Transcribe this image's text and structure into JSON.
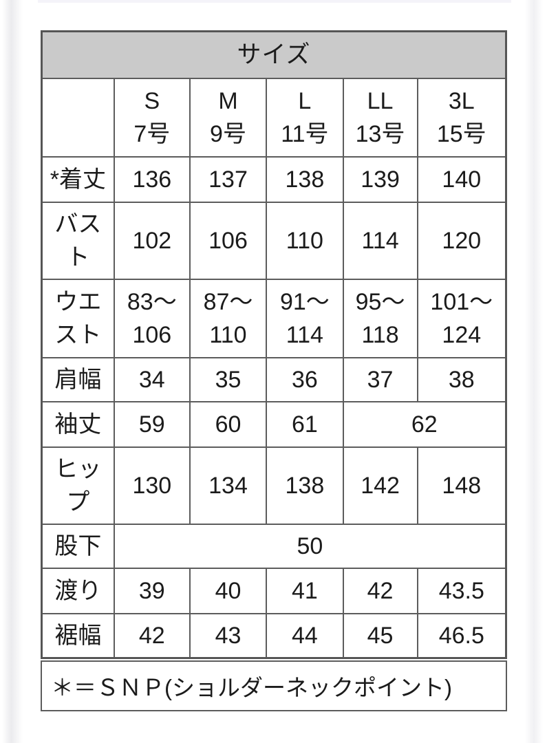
{
  "size_chart": {
    "title": "サイズ",
    "columns": [
      "S\n7号",
      "M\n9号",
      "L\n11号",
      "LL\n13号",
      "3L\n15号"
    ],
    "rows": [
      {
        "label": "*着丈",
        "values": [
          "136",
          "137",
          "138",
          "139",
          "140"
        ]
      },
      {
        "label": "バス\nト",
        "values": [
          "102",
          "106",
          "110",
          "114",
          "120"
        ]
      },
      {
        "label": "ウエ\nスト",
        "values": [
          "83〜\n106",
          "87〜\n110",
          "91〜\n114",
          "95〜\n118",
          "101〜\n124"
        ]
      },
      {
        "label": "肩幅",
        "values": [
          "34",
          "35",
          "36",
          "37",
          "38"
        ]
      },
      {
        "label": "袖丈",
        "values": [
          "59",
          "60",
          "61",
          "62"
        ],
        "spans": [
          1,
          1,
          1,
          2
        ]
      },
      {
        "label": "ヒッ\nプ",
        "values": [
          "130",
          "134",
          "138",
          "142",
          "148"
        ]
      },
      {
        "label": "股下",
        "values": [
          "50"
        ],
        "spans": [
          5
        ]
      },
      {
        "label": "渡り",
        "values": [
          "39",
          "40",
          "41",
          "42",
          "43.5"
        ]
      },
      {
        "label": "裾幅",
        "values": [
          "42",
          "43",
          "44",
          "45",
          "46.5"
        ]
      }
    ],
    "footnote": "＊＝ＳＮＰ(ショルダーネックポイント)"
  },
  "chart_data": {
    "type": "table",
    "title": "サイズ",
    "columns": [
      "",
      "S 7号",
      "M 9号",
      "L 11号",
      "LL 13号",
      "3L 15号"
    ],
    "rows": [
      [
        "*着丈",
        "136",
        "137",
        "138",
        "139",
        "140"
      ],
      [
        "バスト",
        "102",
        "106",
        "110",
        "114",
        "120"
      ],
      [
        "ウエスト",
        "83〜106",
        "87〜110",
        "91〜114",
        "95〜118",
        "101〜124"
      ],
      [
        "肩幅",
        "34",
        "35",
        "36",
        "37",
        "38"
      ],
      [
        "袖丈",
        "59",
        "60",
        "61",
        "62",
        "62"
      ],
      [
        "ヒップ",
        "130",
        "134",
        "138",
        "142",
        "148"
      ],
      [
        "股下",
        "50",
        "50",
        "50",
        "50",
        "50"
      ],
      [
        "渡り",
        "39",
        "40",
        "41",
        "42",
        "43.5"
      ],
      [
        "裾幅",
        "42",
        "43",
        "44",
        "45",
        "46.5"
      ]
    ],
    "footnote": "＊＝ＳＮＰ(ショルダーネックポイント)"
  },
  "colors": {
    "header_bg": "#cacaca",
    "border": "#5c5c5c",
    "text": "#1b1b1b",
    "page_bg": "#ffffff"
  }
}
